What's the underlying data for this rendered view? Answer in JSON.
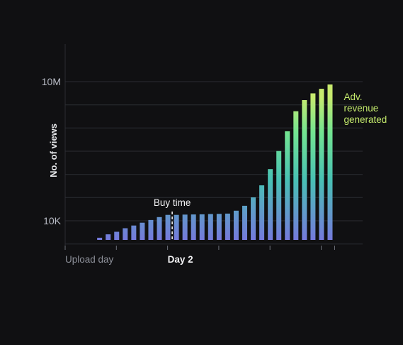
{
  "chart_data": {
    "type": "bar",
    "title": "",
    "ylabel": "No. of views",
    "xlabel": "",
    "y_scale": "log",
    "y_ticks": [
      {
        "value": 10000,
        "label": "10K"
      },
      {
        "value": 10000000,
        "label": "10M"
      }
    ],
    "x_ticks": [
      {
        "bar_index": 0,
        "label": "Upload day",
        "emphasis": false
      },
      {
        "bar_index": 12,
        "label": "Day 2",
        "emphasis": true
      }
    ],
    "values": [
      2700,
      3300,
      3700,
      4300,
      5100,
      5800,
      6900,
      7900,
      9100,
      10400,
      12000,
      13400,
      13400,
      13600,
      13700,
      13800,
      14000,
      14100,
      14300,
      16500,
      21000,
      32000,
      58000,
      130000,
      320000,
      850000,
      2300000,
      4000000,
      5600000,
      7000000,
      8700000
    ],
    "grid": true,
    "gradient_colors": [
      "#7579dc",
      "#48c1b4",
      "#73e491",
      "#c8ea6e"
    ],
    "annotations": [
      {
        "label": "Buy time",
        "after_bar_index": 11
      },
      {
        "label_lines": [
          "Adv.",
          "revenue",
          "generated"
        ],
        "after_bar_index": 30,
        "color": "#c4ea6c"
      }
    ]
  }
}
